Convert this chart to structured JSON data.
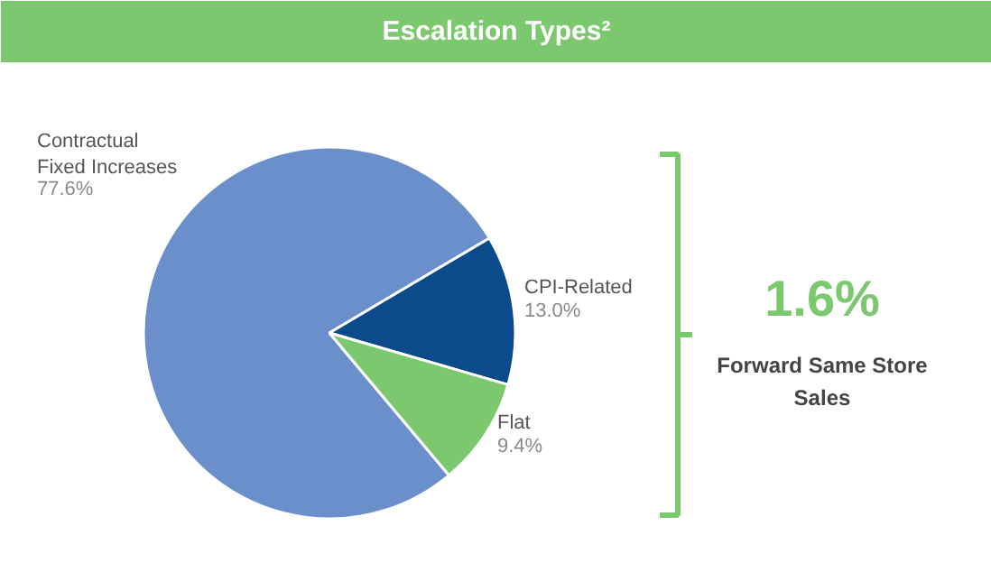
{
  "chart_data": {
    "type": "pie",
    "title": "Escalation Types²",
    "categories": [
      "Contractual Fixed Increases",
      "CPI-Related",
      "Flat"
    ],
    "values": [
      77.6,
      13.0,
      9.4
    ],
    "colors": [
      "#6a8fcb",
      "#0b4a8b",
      "#7cc86e"
    ],
    "value_labels": [
      "77.6%",
      "13.0%",
      "9.4%"
    ],
    "annotations": [
      "1.6%",
      "Forward Same Store Sales"
    ]
  }
}
